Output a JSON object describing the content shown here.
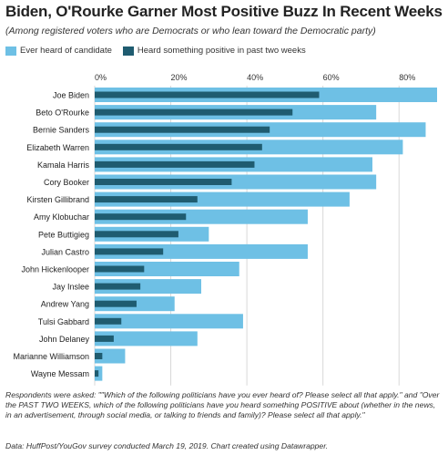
{
  "header": {
    "title": "Biden, O'Rourke Garner Most Positive Buzz In Recent Weeks",
    "subtitle": "(Among registered voters who are Democrats or who lean toward the Democratic party)"
  },
  "footer": {
    "notes": "Respondents were asked: \"\"Which of the following politicians have you ever heard of? Please select all that apply.\" and \"Over the PAST TWO WEEKS, which of the following politicians have you heard something POSITIVE about (whether in the news, in an advertisement, through social media, or talking to friends and family)? Please select all that apply.\"",
    "source": "Data: HuffPost/YouGov survey conducted March 19, 2019. Chart created using Datawrapper."
  },
  "colors": {
    "ever_heard": "#6ec0e5",
    "heard_positive": "#1f5c70",
    "grid": "#d8d8d8",
    "text": "#222222"
  },
  "chart_data": {
    "type": "bar",
    "orientation": "horizontal",
    "title": "Biden, O'Rourke Garner Most Positive Buzz In Recent Weeks",
    "subtitle": "(Among registered voters who are Democrats or who lean toward the Democratic party)",
    "xlabel": "",
    "ylabel": "",
    "xlim": [
      0,
      90
    ],
    "x_ticks": [
      0,
      20,
      40,
      60,
      80
    ],
    "x_tick_labels": [
      "0%",
      "20%",
      "40%",
      "60%",
      "80%"
    ],
    "grid": true,
    "legend_position": "top-left",
    "categories": [
      "Joe Biden",
      "Beto O'Rourke",
      "Bernie Sanders",
      "Elizabeth Warren",
      "Kamala Harris",
      "Cory Booker",
      "Kirsten Gillibrand",
      "Amy Klobuchar",
      "Pete Buttigieg",
      "Julian Castro",
      "John Hickenlooper",
      "Jay Inslee",
      "Andrew Yang",
      "Tulsi Gabbard",
      "John Delaney",
      "Marianne Williamson",
      "Wayne Messam"
    ],
    "series": [
      {
        "name": "Ever heard of candidate",
        "values": [
          90,
          74,
          87,
          81,
          73,
          74,
          67,
          56,
          30,
          56,
          38,
          28,
          21,
          39,
          27,
          8,
          2
        ]
      },
      {
        "name": "Heard something positive in past two weeks",
        "values": [
          59,
          52,
          46,
          44,
          42,
          36,
          27,
          24,
          22,
          18,
          13,
          12,
          11,
          7,
          5,
          2,
          1
        ]
      }
    ]
  }
}
